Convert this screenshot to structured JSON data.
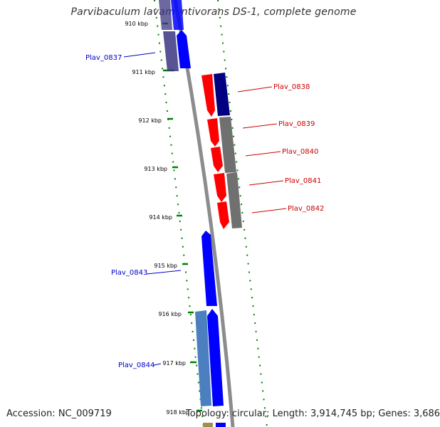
{
  "title": "Parvibaculum lavamentivorans DS-1, complete genome",
  "accession": "Accession: NC_009719",
  "topology_summary": "Topology: circular; Length: 3,914,745 bp; Genes: 3,686",
  "colors": {
    "forward_strong": "#0000ff",
    "forward_dark": "#000080",
    "reverse_strong": "#ff0000",
    "grey_gene": "#707070",
    "backbone": "#8c8c8c",
    "tick": "#008000",
    "label_blue": "#0000cc",
    "label_red": "#cc0000"
  },
  "tick_labels": [
    {
      "kbp": 910,
      "label": "910 kbp"
    },
    {
      "kbp": 911,
      "label": "911 kbp"
    },
    {
      "kbp": 912,
      "label": "912 kbp"
    },
    {
      "kbp": 913,
      "label": "913 kbp"
    },
    {
      "kbp": 914,
      "label": "914 kbp"
    },
    {
      "kbp": 915,
      "label": "915 kbp"
    },
    {
      "kbp": 916,
      "label": "916 kbp"
    },
    {
      "kbp": 917,
      "label": "917 kbp"
    },
    {
      "kbp": 918,
      "label": "918 kbp"
    }
  ],
  "gene_labels": [
    {
      "name": "Plav_0837",
      "color": "blue"
    },
    {
      "name": "Plav_0838",
      "color": "red"
    },
    {
      "name": "Plav_0839",
      "color": "red"
    },
    {
      "name": "Plav_0840",
      "color": "red"
    },
    {
      "name": "Plav_0841",
      "color": "red"
    },
    {
      "name": "Plav_0842",
      "color": "red"
    },
    {
      "name": "Plav_0843",
      "color": "blue"
    },
    {
      "name": "Plav_0844",
      "color": "blue"
    }
  ]
}
